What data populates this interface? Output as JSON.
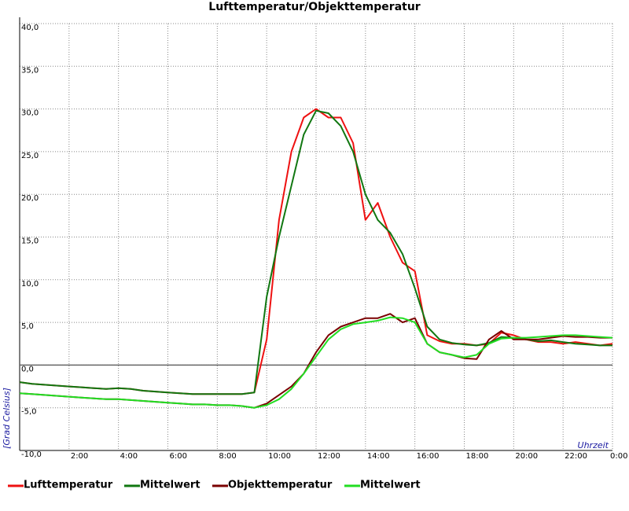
{
  "chart_data": {
    "type": "line",
    "title": "Lufttemperatur/Objekttemperatur",
    "y_label": "[Grad Celsius]",
    "x_label": "Uhrzeit",
    "x": [
      0,
      0.5,
      1,
      1.5,
      2,
      2.5,
      3,
      3.5,
      4,
      4.5,
      5,
      5.5,
      6,
      6.5,
      7,
      7.5,
      8,
      8.5,
      9,
      9.5,
      10,
      10.5,
      11,
      11.5,
      12,
      12.5,
      13,
      13.5,
      14,
      14.5,
      15,
      15.5,
      16,
      16.5,
      17,
      17.5,
      18,
      18.5,
      19,
      19.5,
      20,
      20.5,
      21,
      21.5,
      22,
      22.5,
      23,
      23.5,
      24
    ],
    "series": [
      {
        "name": "Lufttemperatur",
        "color": "#ee1111",
        "values": [
          -2.0,
          -2.2,
          -2.3,
          -2.4,
          -2.5,
          -2.6,
          -2.7,
          -2.8,
          -2.7,
          -2.8,
          -3.0,
          -3.1,
          -3.2,
          -3.3,
          -3.4,
          -3.4,
          -3.4,
          -3.4,
          -3.4,
          -3.2,
          3,
          17,
          25,
          29,
          30,
          29,
          29,
          26,
          17,
          19,
          15,
          12,
          11,
          3.5,
          2.8,
          2.5,
          2.5,
          2.3,
          2.5,
          3.8,
          3.5,
          3.0,
          2.7,
          2.7,
          2.5,
          2.7,
          2.5,
          2.3,
          2.5
        ]
      },
      {
        "name": "Mittelwert",
        "color": "#117711",
        "values": [
          -2.0,
          -2.2,
          -2.3,
          -2.4,
          -2.5,
          -2.6,
          -2.7,
          -2.8,
          -2.7,
          -2.8,
          -3.0,
          -3.1,
          -3.2,
          -3.3,
          -3.4,
          -3.4,
          -3.4,
          -3.4,
          -3.4,
          -3.2,
          8,
          15,
          21,
          27,
          29.8,
          29.5,
          28,
          25,
          20,
          17,
          15.5,
          13,
          9,
          4.5,
          3,
          2.6,
          2.4,
          2.3,
          2.6,
          3.3,
          3.2,
          3.0,
          2.8,
          2.9,
          2.7,
          2.5,
          2.4,
          2.3,
          2.3
        ]
      },
      {
        "name": "Objekttemperatur",
        "color": "#7a0000",
        "values": [
          -3.3,
          -3.4,
          -3.5,
          -3.6,
          -3.7,
          -3.8,
          -3.9,
          -4.0,
          -4.0,
          -4.1,
          -4.2,
          -4.3,
          -4.4,
          -4.5,
          -4.6,
          -4.6,
          -4.7,
          -4.7,
          -4.8,
          -5.0,
          -4.5,
          -3.5,
          -2.5,
          -1,
          1.5,
          3.5,
          4.5,
          5,
          5.5,
          5.5,
          6,
          5,
          5.5,
          2.5,
          1.5,
          1.2,
          0.8,
          0.7,
          3,
          4,
          3,
          3,
          3,
          3.2,
          3.4,
          3.3,
          3.3,
          3.2,
          3.2
        ]
      },
      {
        "name": "Mittelwert",
        "color": "#22dd22",
        "values": [
          -3.3,
          -3.4,
          -3.5,
          -3.6,
          -3.7,
          -3.8,
          -3.9,
          -4.0,
          -4.0,
          -4.1,
          -4.2,
          -4.3,
          -4.4,
          -4.5,
          -4.6,
          -4.6,
          -4.7,
          -4.7,
          -4.8,
          -5.0,
          -4.7,
          -4,
          -2.8,
          -1,
          1,
          3,
          4.2,
          4.8,
          5,
          5.2,
          5.6,
          5.5,
          5,
          2.5,
          1.5,
          1.2,
          0.9,
          1.2,
          2.5,
          3.1,
          3.2,
          3.2,
          3.3,
          3.4,
          3.5,
          3.5,
          3.4,
          3.3,
          3.2
        ]
      }
    ],
    "xlim": [
      0,
      24
    ],
    "xticks": [
      {
        "value": 2,
        "label": "2:00"
      },
      {
        "value": 4,
        "label": "4:00"
      },
      {
        "value": 6,
        "label": "6:00"
      },
      {
        "value": 8,
        "label": "8:00"
      },
      {
        "value": 10,
        "label": "10:00"
      },
      {
        "value": 12,
        "label": "12:00"
      },
      {
        "value": 14,
        "label": "14:00"
      },
      {
        "value": 16,
        "label": "16:00"
      },
      {
        "value": 18,
        "label": "18:00"
      },
      {
        "value": 20,
        "label": "20:00"
      },
      {
        "value": 22,
        "label": "22:00"
      },
      {
        "value": 24,
        "label": "0:00"
      }
    ],
    "ylim": [
      -10,
      40
    ],
    "yticks": [
      {
        "value": -10,
        "label": "-10,0"
      },
      {
        "value": -5,
        "label": "-5,0"
      },
      {
        "value": 0,
        "label": "0,0"
      },
      {
        "value": 5,
        "label": "5,0"
      },
      {
        "value": 10,
        "label": "10,0"
      },
      {
        "value": 15,
        "label": "15,0"
      },
      {
        "value": 20,
        "label": "20,0"
      },
      {
        "value": 25,
        "label": "25,0"
      },
      {
        "value": 30,
        "label": "30,0"
      },
      {
        "value": 35,
        "label": "35,0"
      },
      {
        "value": 40,
        "label": "40,0"
      }
    ],
    "grid": true,
    "legend": "bottom"
  }
}
